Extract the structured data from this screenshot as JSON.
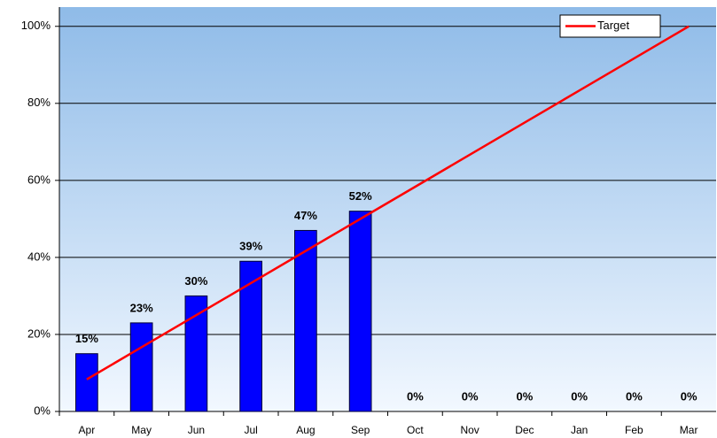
{
  "chart_data": {
    "type": "bar",
    "categories": [
      "Apr",
      "May",
      "Jun",
      "Jul",
      "Aug",
      "Sep",
      "Oct",
      "Nov",
      "Dec",
      "Jan",
      "Feb",
      "Mar"
    ],
    "series": [
      {
        "type": "bar",
        "color": "#0000ff",
        "values": [
          15,
          23,
          30,
          39,
          47,
          52,
          0,
          0,
          0,
          0,
          0,
          0
        ],
        "value_labels": [
          "15%",
          "23%",
          "30%",
          "39%",
          "47%",
          "52%",
          "0%",
          "0%",
          "0%",
          "0%",
          "0%",
          "0%"
        ]
      },
      {
        "type": "line",
        "name": "Target",
        "color": "#ff0000",
        "values": [
          8.33,
          16.67,
          25,
          33.33,
          41.67,
          50,
          58.33,
          66.67,
          75,
          83.33,
          91.67,
          100
        ]
      }
    ],
    "ylim": [
      0,
      105
    ],
    "yticks": [
      {
        "value": 0,
        "label": "0%"
      },
      {
        "value": 20,
        "label": "20%"
      },
      {
        "value": 40,
        "label": "40%"
      },
      {
        "value": 60,
        "label": "60%"
      },
      {
        "value": 80,
        "label": "80%"
      },
      {
        "value": 100,
        "label": "100%"
      }
    ],
    "grid": true,
    "legend": "top-right"
  }
}
